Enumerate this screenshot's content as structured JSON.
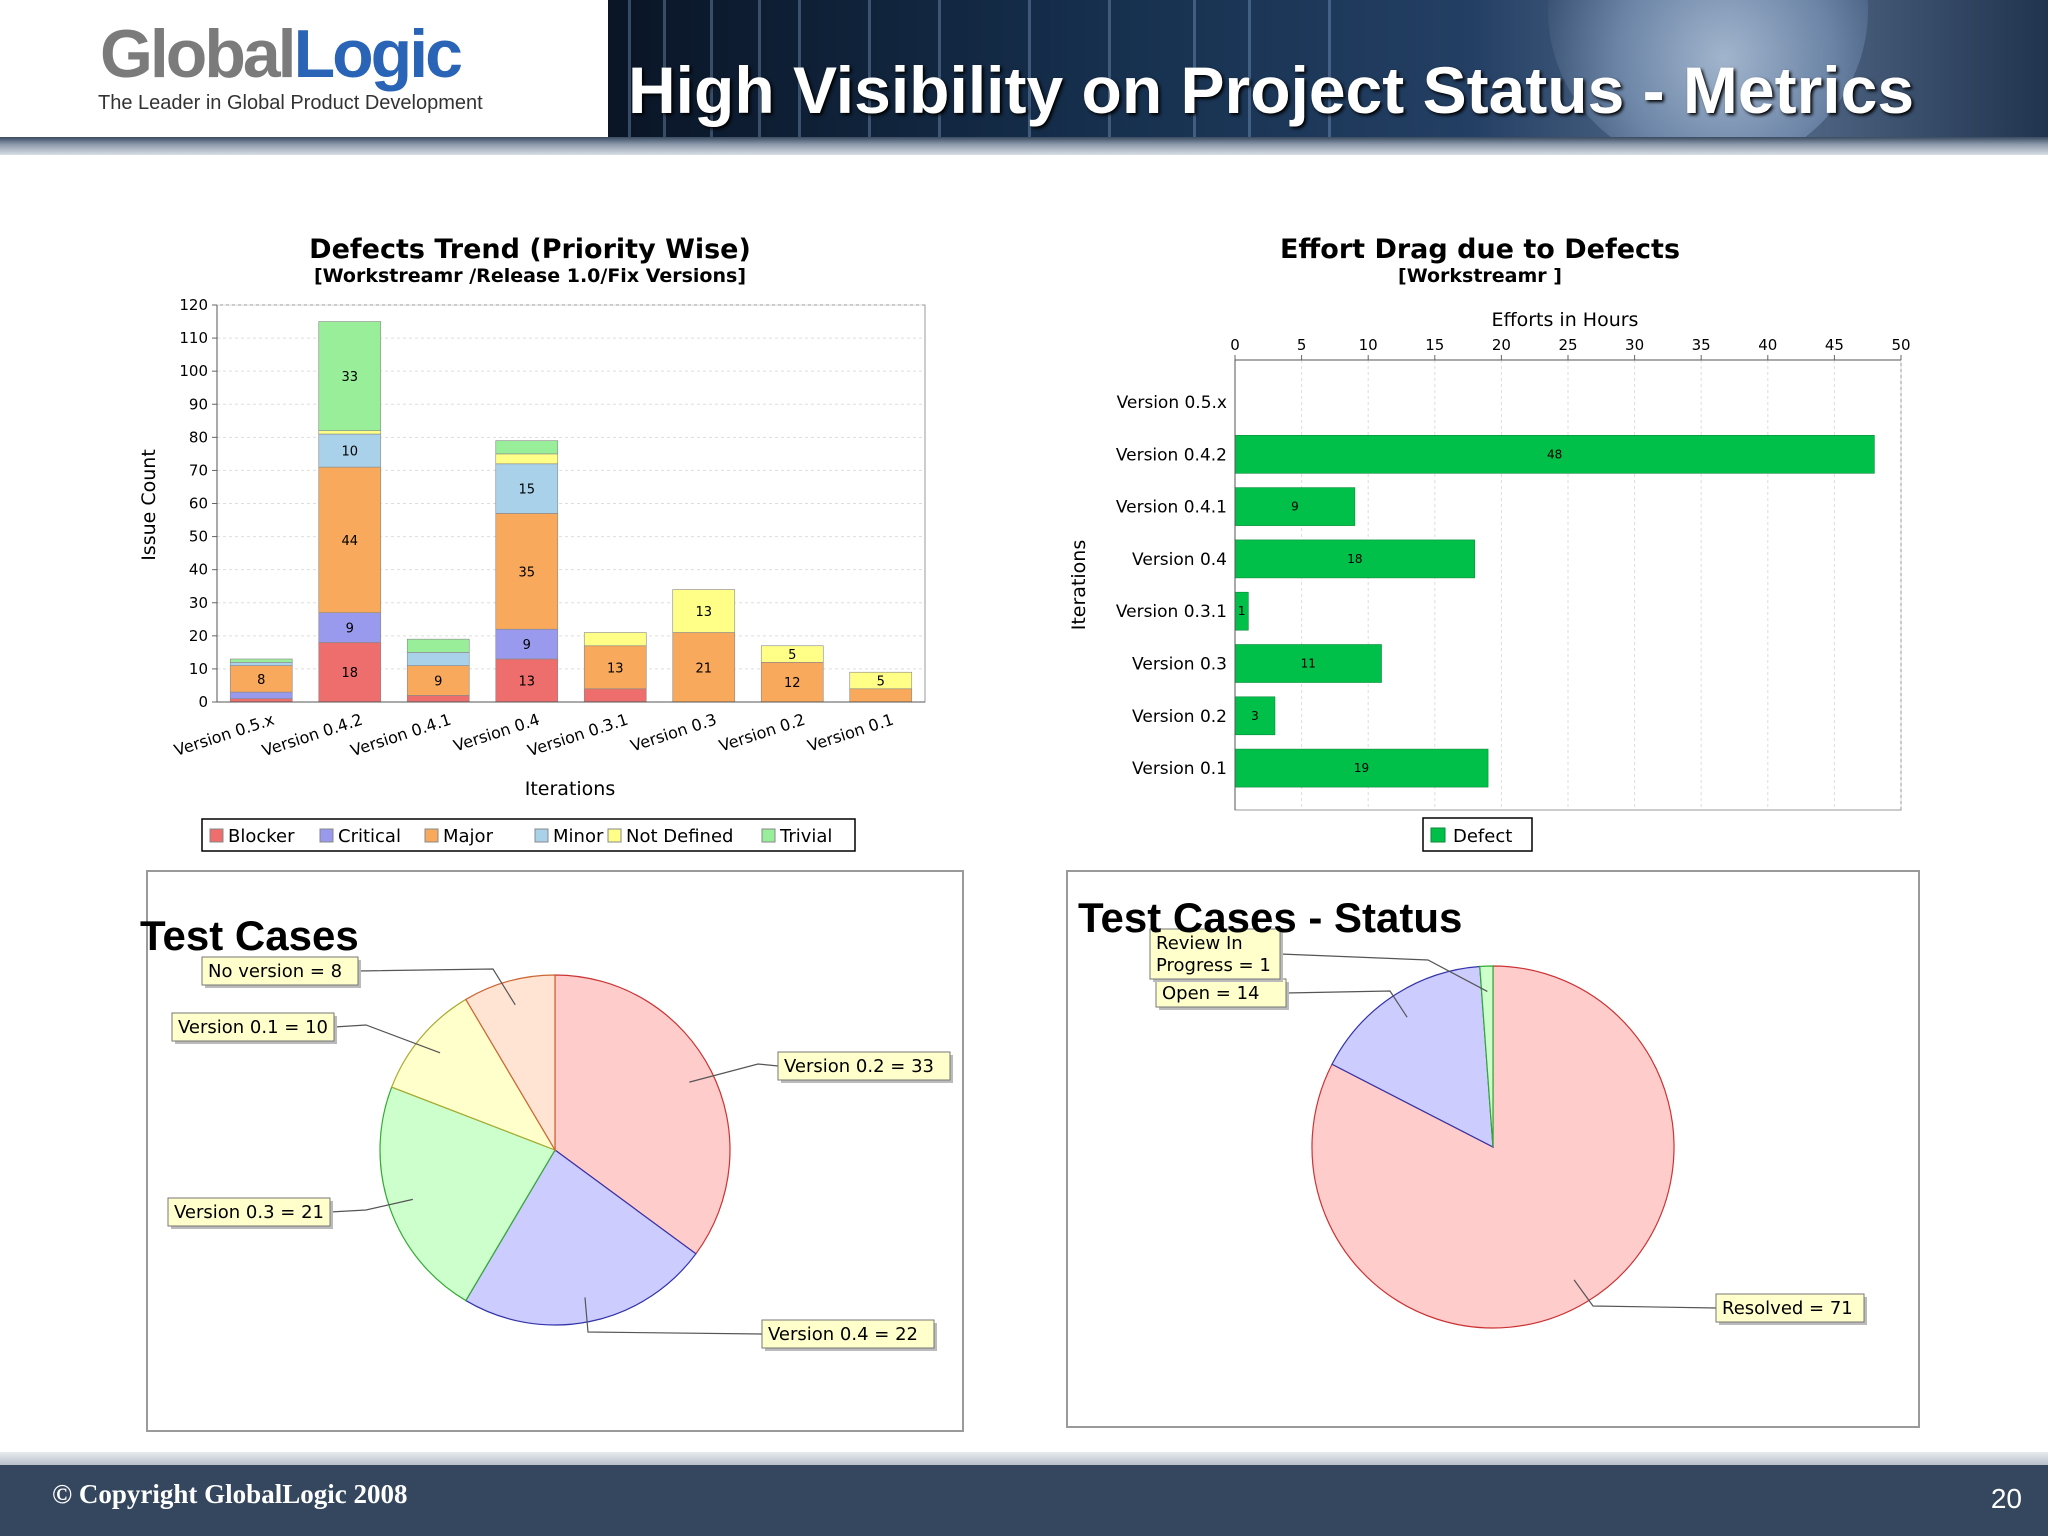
{
  "header": {
    "logo_global": "Global",
    "logo_logic": "Logic",
    "tagline": "The Leader in Global Product Development",
    "title": "High Visibility on Project Status - Metrics"
  },
  "footer": {
    "copyright": "© Copyright GlobalLogic 2008",
    "page_number": "20"
  },
  "colors": {
    "blocker": "#ee6d6d",
    "critical": "#9999ee",
    "major": "#f8a95c",
    "minor": "#a9d2ea",
    "not_defined": "#ffff88",
    "trivial": "#99ee99",
    "defect": "#00c04a"
  },
  "chart_data": [
    {
      "type": "bar",
      "stacked": true,
      "title": "Defects Trend (Priority Wise)",
      "subtitle": "[Workstreamr /Release 1.0/Fix Versions]",
      "xlabel": "Iterations",
      "ylabel": "Issue Count",
      "ylim": [
        0,
        120
      ],
      "yticks": [
        0,
        10,
        20,
        30,
        40,
        50,
        60,
        70,
        80,
        90,
        100,
        110,
        120
      ],
      "grid": true,
      "legend": "bottom",
      "categories": [
        "Version 0.5.x",
        "Version 0.4.2",
        "Version 0.4.1",
        "Version 0.4",
        "Version 0.3.1",
        "Version 0.3",
        "Version 0.2",
        "Version 0.1"
      ],
      "series": [
        {
          "name": "Blocker",
          "values": [
            1,
            18,
            2,
            13,
            4,
            0,
            0,
            0
          ]
        },
        {
          "name": "Critical",
          "values": [
            2,
            9,
            0,
            9,
            0,
            0,
            0,
            0
          ]
        },
        {
          "name": "Major",
          "values": [
            8,
            44,
            9,
            35,
            13,
            21,
            12,
            4
          ]
        },
        {
          "name": "Minor",
          "values": [
            1,
            10,
            4,
            15,
            0,
            0,
            0,
            0
          ]
        },
        {
          "name": "Not Defined",
          "values": [
            0,
            1,
            0,
            3,
            4,
            13,
            5,
            5
          ]
        },
        {
          "name": "Trivial",
          "values": [
            1,
            33,
            4,
            4,
            0,
            0,
            0,
            0
          ]
        }
      ],
      "labels": [
        [
          null,
          "18",
          null,
          "13",
          null,
          null,
          null,
          null
        ],
        [
          null,
          "9",
          null,
          "9",
          null,
          null,
          null,
          null
        ],
        [
          "8",
          "44",
          "9",
          "35",
          "13",
          "21",
          "12",
          null
        ],
        [
          null,
          "10",
          null,
          "15",
          null,
          null,
          null,
          null
        ],
        [
          null,
          null,
          null,
          null,
          null,
          "13",
          "5",
          "5"
        ],
        [
          null,
          "33",
          null,
          null,
          null,
          null,
          null,
          null
        ]
      ]
    },
    {
      "type": "bar",
      "orientation": "horizontal",
      "title": "Effort Drag due to Defects",
      "subtitle": "[Workstreamr ]",
      "xlabel": "Efforts in Hours",
      "ylabel": "Iterations",
      "xlim": [
        0,
        50
      ],
      "xticks": [
        0,
        5,
        10,
        15,
        20,
        25,
        30,
        35,
        40,
        45,
        50
      ],
      "grid": true,
      "legend": "bottom",
      "categories": [
        "Version 0.5.x",
        "Version 0.4.2",
        "Version 0.4.1",
        "Version 0.4",
        "Version 0.3.1",
        "Version 0.3",
        "Version 0.2",
        "Version 0.1"
      ],
      "series": [
        {
          "name": "Defect",
          "values": [
            0,
            48,
            9,
            18,
            1,
            11,
            3,
            19
          ]
        }
      ]
    },
    {
      "type": "pie",
      "title": "Test Cases",
      "slices": [
        {
          "label": "Version 0.2 = 33",
          "value": 33,
          "color": "#ffcccc",
          "stroke": "#cc3333"
        },
        {
          "label": "Version 0.4 = 22",
          "value": 22,
          "color": "#ccccff",
          "stroke": "#3333aa"
        },
        {
          "label": "Version 0.3 = 21",
          "value": 21,
          "color": "#ccffcc",
          "stroke": "#33aa33"
        },
        {
          "label": "Version 0.1 = 10",
          "value": 10,
          "color": "#ffffcc",
          "stroke": "#aaaa33"
        },
        {
          "label": "No version = 8",
          "value": 8,
          "color": "#ffe4d4",
          "stroke": "#cc6633"
        }
      ]
    },
    {
      "type": "pie",
      "title": "Test Cases - Status",
      "slices": [
        {
          "label": "Resolved = 71",
          "value": 71,
          "color": "#ffcccc",
          "stroke": "#cc3333"
        },
        {
          "label": "Open = 14",
          "value": 14,
          "color": "#ccccff",
          "stroke": "#3333aa"
        },
        {
          "label": "Review In Progress = 1",
          "value": 1,
          "color": "#ccffcc",
          "stroke": "#33aa33"
        }
      ]
    }
  ]
}
